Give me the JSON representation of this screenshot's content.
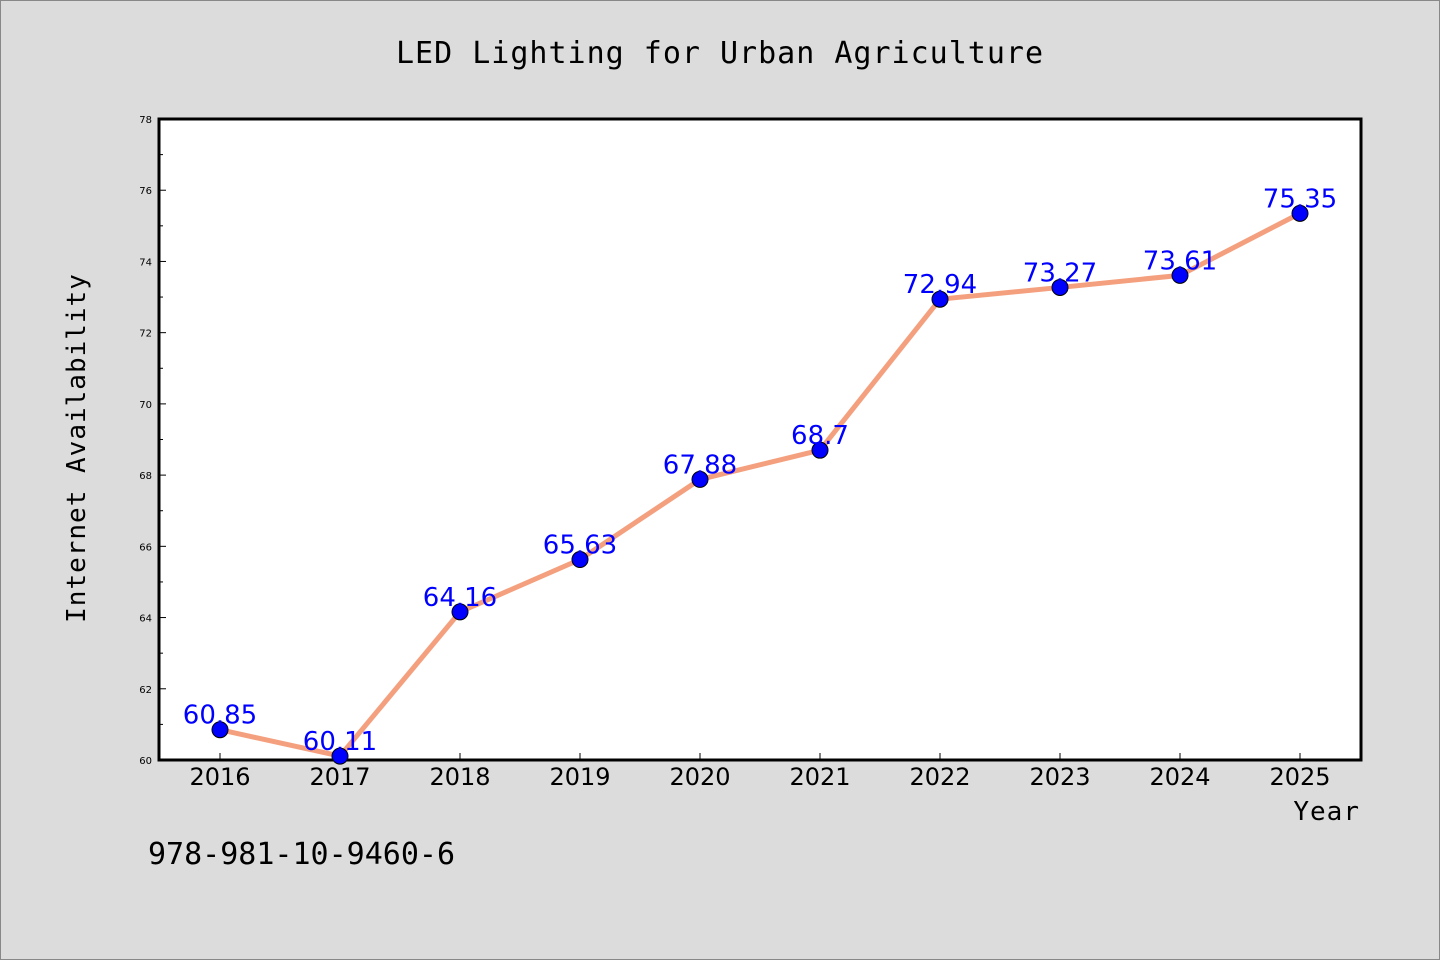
{
  "chart_data": {
    "type": "line",
    "title": "LED Lighting for Urban Agriculture",
    "xlabel": "Year",
    "ylabel": "Internet Availability",
    "categories": [
      "2016",
      "2017",
      "2018",
      "2019",
      "2020",
      "2021",
      "2022",
      "2023",
      "2024",
      "2025"
    ],
    "series": [
      {
        "values": [
          60.85,
          60.11,
          64.16,
          65.63,
          67.88,
          68.7,
          72.94,
          73.27,
          73.61,
          75.35
        ],
        "labels": [
          "60.85",
          "60.11",
          "64.16",
          "65.63",
          "67.88",
          "68.7",
          "72.94",
          "73.27",
          "73.61",
          "75.35"
        ],
        "line_color": "#f4a07e",
        "marker_color": "#0000ff"
      }
    ],
    "ylim": [
      60,
      78
    ],
    "yticks": [
      "60",
      "62",
      "64",
      "66",
      "68",
      "70",
      "72",
      "74",
      "76",
      "78"
    ],
    "grid": false,
    "legend": "none"
  },
  "footer": {
    "isbn": "978-981-10-9460-6"
  },
  "colors": {
    "background": "#dcdcdc",
    "plot_background": "#ffffff",
    "axis": "#000000"
  }
}
